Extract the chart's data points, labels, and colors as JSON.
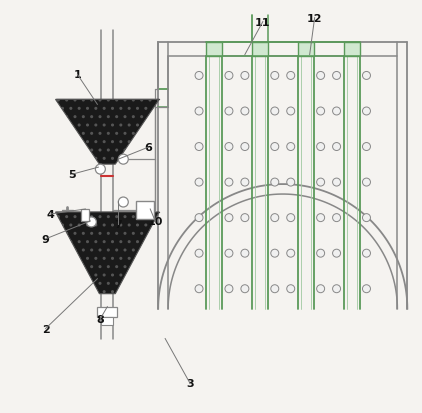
{
  "bg_color": "#f5f3f0",
  "line_color": "#888888",
  "green_color": "#5a9a5a",
  "dark_fill": "#1a1a1a",
  "figsize": [
    4.22,
    4.14
  ],
  "dpi": 100
}
